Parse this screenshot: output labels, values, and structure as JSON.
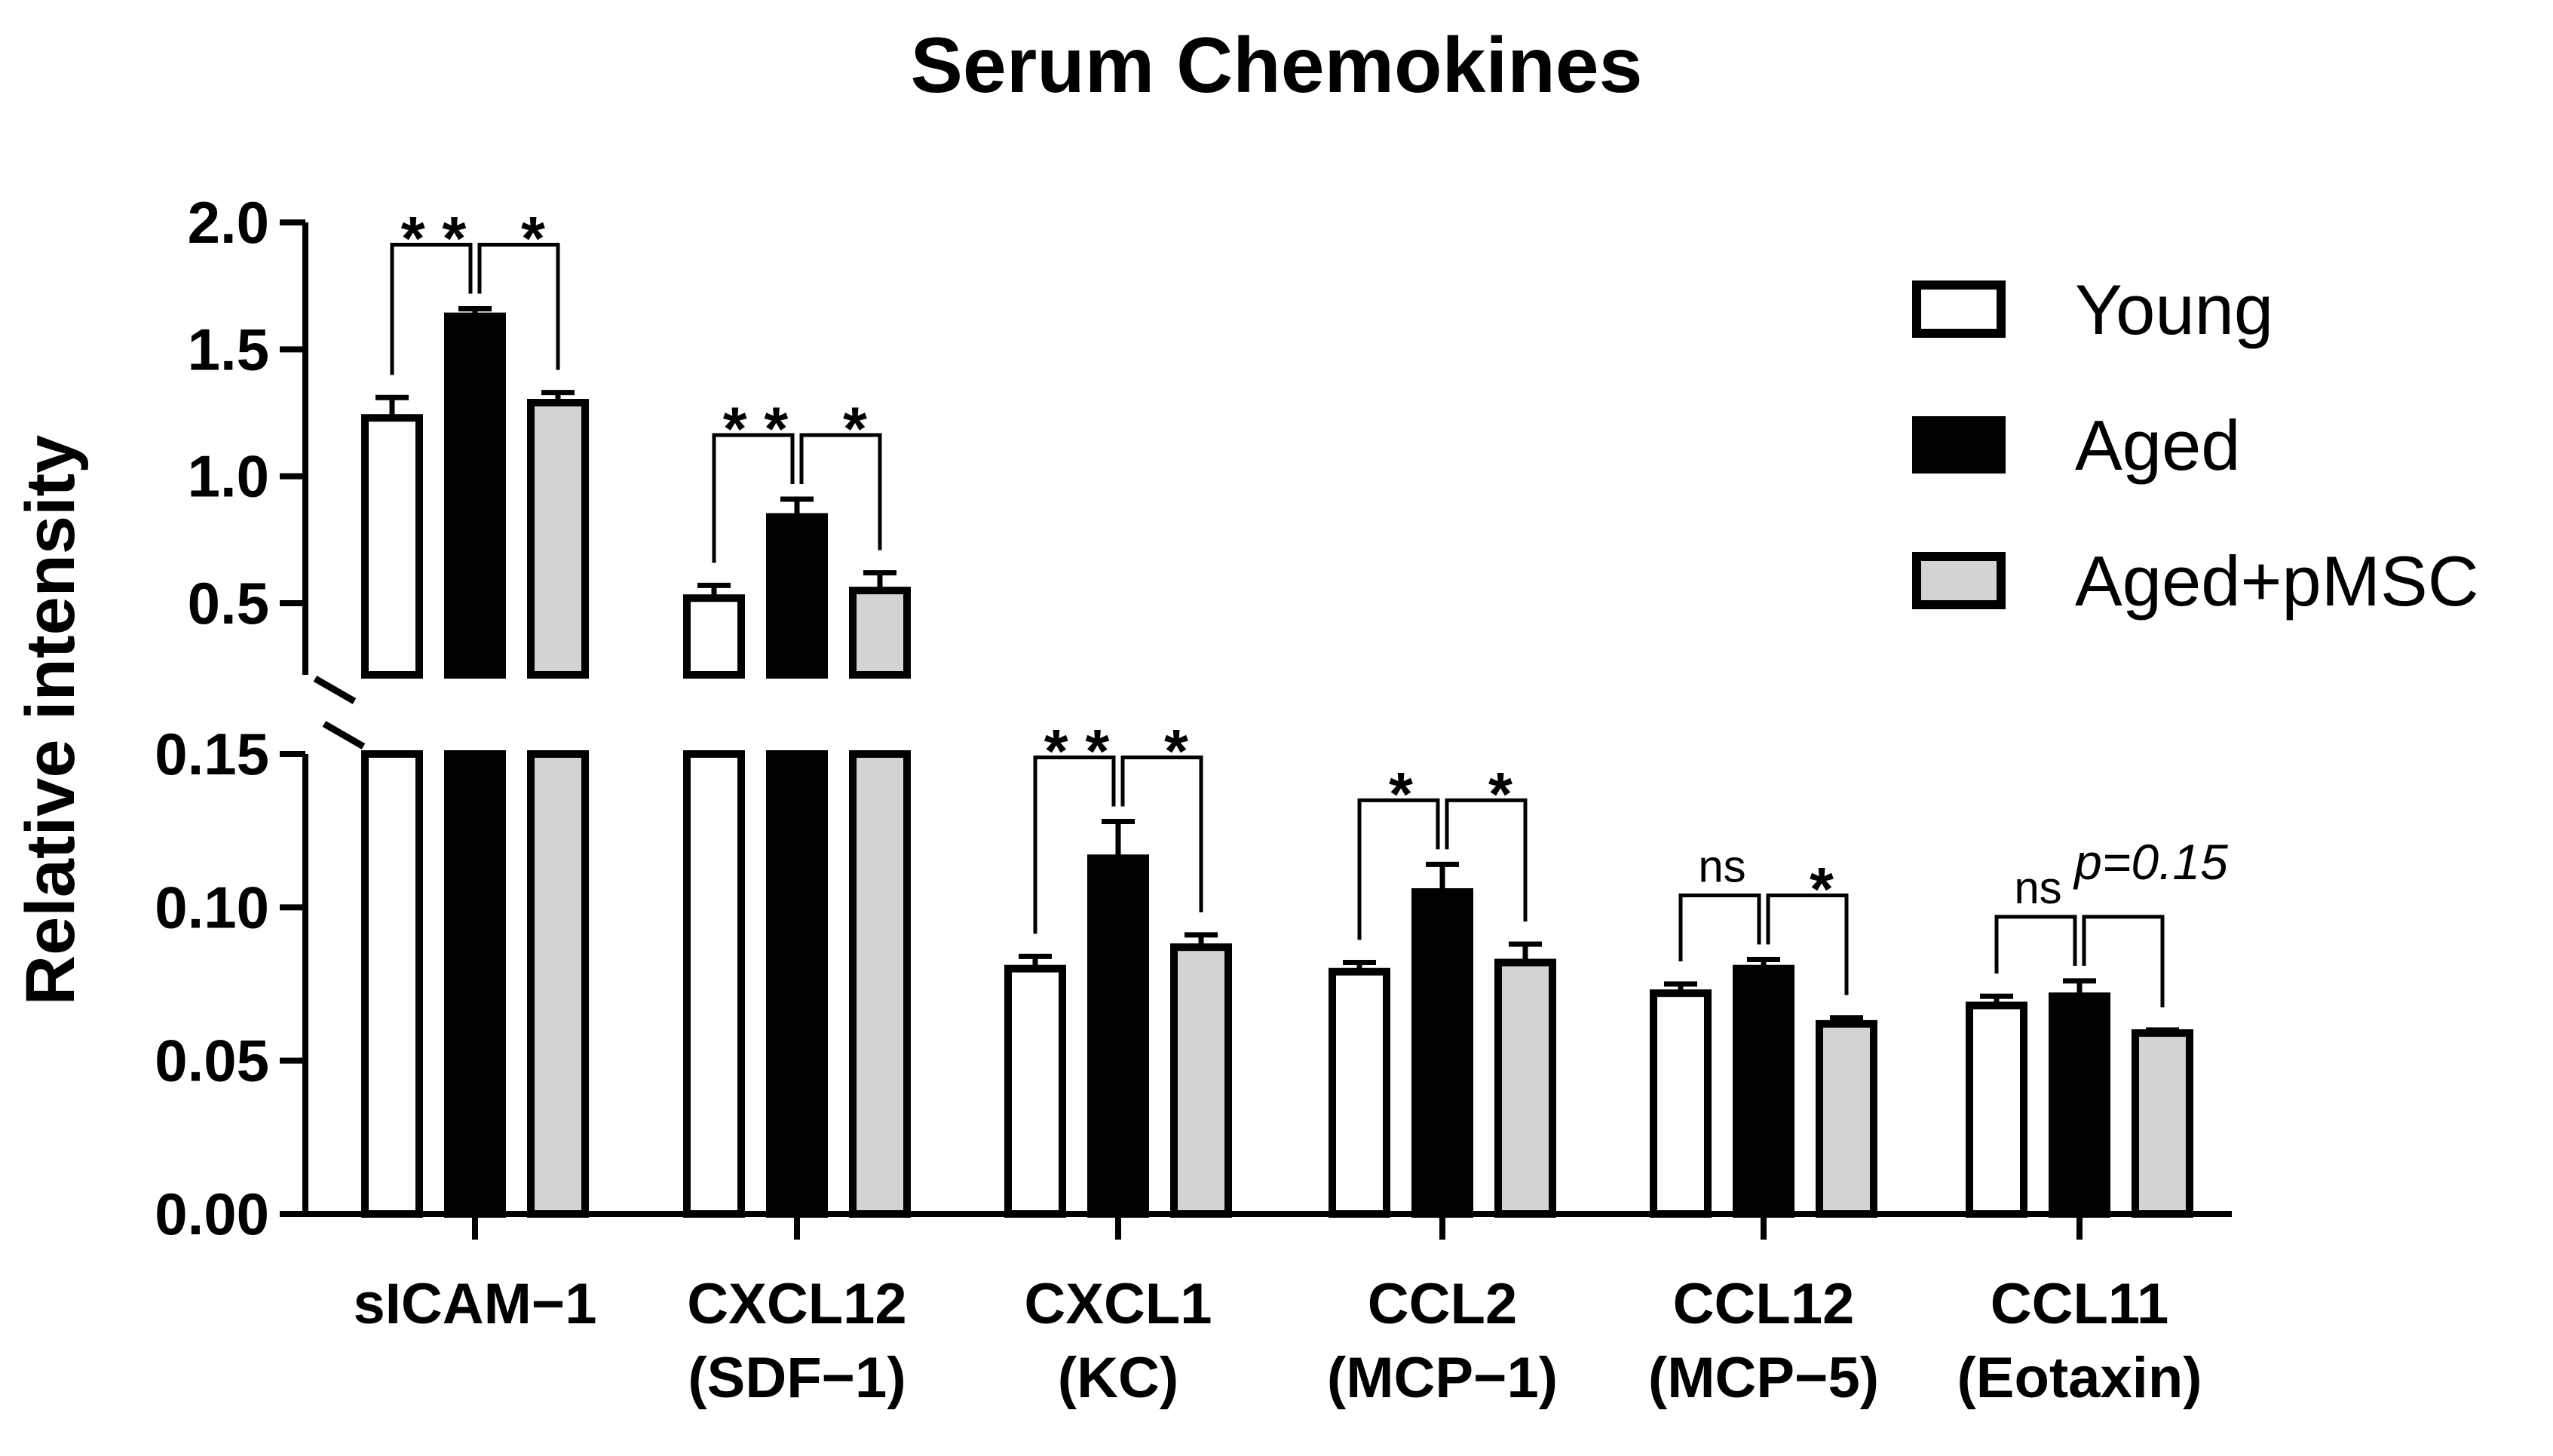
{
  "chart_data": {
    "type": "bar",
    "title": "Serum Chemokines",
    "ylabel": "Relative intensity",
    "xlabel": "",
    "y_axis": "broken",
    "lower_segment": {
      "ylim": [
        0,
        0.15
      ],
      "ticks": [
        "0.00",
        "0.05",
        "0.10",
        "0.15"
      ]
    },
    "upper_segment": {
      "ylim": [
        0.35,
        2.0
      ],
      "ticks": [
        "0.5",
        "1.0",
        "1.5",
        "2.0"
      ]
    },
    "categories": [
      [
        "sICAM−1"
      ],
      [
        "CXCL12",
        "(SDF−1)"
      ],
      [
        "CXCL1",
        "(KC)"
      ],
      [
        "CCL2",
        "(MCP−1)"
      ],
      [
        "CCL12",
        "(MCP−5)"
      ],
      [
        "CCL11",
        "(Eotaxin)"
      ]
    ],
    "series": [
      {
        "name": "Young",
        "color": "#ffffff",
        "values": [
          1.23,
          0.52,
          0.08,
          0.079,
          0.072,
          0.068
        ],
        "errors": [
          0.08,
          0.05,
          0.004,
          0.003,
          0.003,
          0.003
        ]
      },
      {
        "name": "Aged",
        "color": "#000000",
        "values": [
          1.63,
          0.84,
          0.116,
          0.105,
          0.08,
          0.071
        ],
        "errors": [
          0.03,
          0.07,
          0.012,
          0.009,
          0.003,
          0.005
        ]
      },
      {
        "name": "Aged+pMSC",
        "color": "#d3d3d3",
        "values": [
          1.29,
          0.55,
          0.087,
          0.082,
          0.062,
          0.059
        ],
        "errors": [
          0.04,
          0.07,
          0.004,
          0.006,
          0.002,
          0.001
        ]
      }
    ],
    "significance": [
      {
        "left": "* *",
        "right": "*",
        "p": ""
      },
      {
        "left": "* *",
        "right": "*",
        "p": ""
      },
      {
        "left": "* *",
        "right": "*",
        "p": ""
      },
      {
        "left": "*",
        "right": "*",
        "p": ""
      },
      {
        "left": "ns",
        "right": "*",
        "p": ""
      },
      {
        "left": "ns",
        "right": "",
        "p": "p=0.15"
      }
    ],
    "legend_position": "top-right",
    "grid": false
  }
}
